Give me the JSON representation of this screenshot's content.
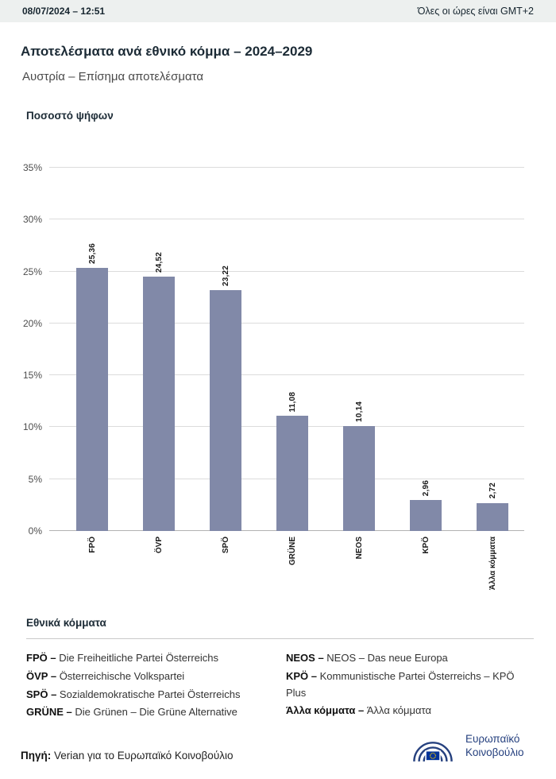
{
  "header": {
    "datetime": "08/07/2024 – 12:51",
    "timezone_note": "Όλες οι ώρες είναι GMT+2"
  },
  "page": {
    "title": "Αποτελέσματα ανά εθνικό κόμμα – 2024–2029",
    "subtitle": "Αυστρία – Επίσημα αποτελέσματα"
  },
  "chart_data": {
    "type": "bar",
    "title": "Ποσοστό ψήφων",
    "categories": [
      "FPÖ",
      "ÖVP",
      "SPÖ",
      "GRÜNE",
      "NEOS",
      "KPÖ",
      "Άλλα κόμματα"
    ],
    "values": [
      25.36,
      24.52,
      23.22,
      11.08,
      10.14,
      2.96,
      2.72
    ],
    "value_labels": [
      "25,36",
      "24,52",
      "23,22",
      "11,08",
      "10,14",
      "2,96",
      "2,72"
    ],
    "xlabel": "",
    "ylabel": "",
    "ylim": [
      0,
      35
    ],
    "ytick_step": 5,
    "ytick_labels": [
      "0%",
      "5%",
      "10%",
      "15%",
      "20%",
      "25%",
      "30%",
      "35%"
    ],
    "grid": true,
    "legend_position": "below",
    "bar_color": "#8189a8"
  },
  "legend": {
    "heading": "Εθνικά κόμματα",
    "columns": [
      {
        "items": [
          {
            "abbr": "FPÖ – ",
            "name": "Die Freiheitliche Partei Österreichs"
          },
          {
            "abbr": "ÖVP – ",
            "name": "Österreichische Volkspartei"
          },
          {
            "abbr": "SPÖ – ",
            "name": "Sozialdemokratische Partei Österreichs"
          },
          {
            "abbr": "GRÜNE – ",
            "name": "Die Grünen – Die Grüne Alternative"
          }
        ]
      },
      {
        "items": [
          {
            "abbr": "NEOS – ",
            "name": "NEOS – Das neue Europa"
          },
          {
            "abbr": "KPÖ – ",
            "name": "Kommunistische Partei Österreichs – KPÖ Plus"
          },
          {
            "abbr": "Άλλα κόμματα – ",
            "name": "Άλλα κόμματα"
          }
        ]
      }
    ]
  },
  "footer": {
    "source_label": "Πηγή:",
    "source_text": "Verian για το Ευρωπαϊκό Κοινοβούλιο",
    "logo": {
      "line1": "Ευρωπαϊκό",
      "line2": "Κοινοβούλιο"
    }
  }
}
